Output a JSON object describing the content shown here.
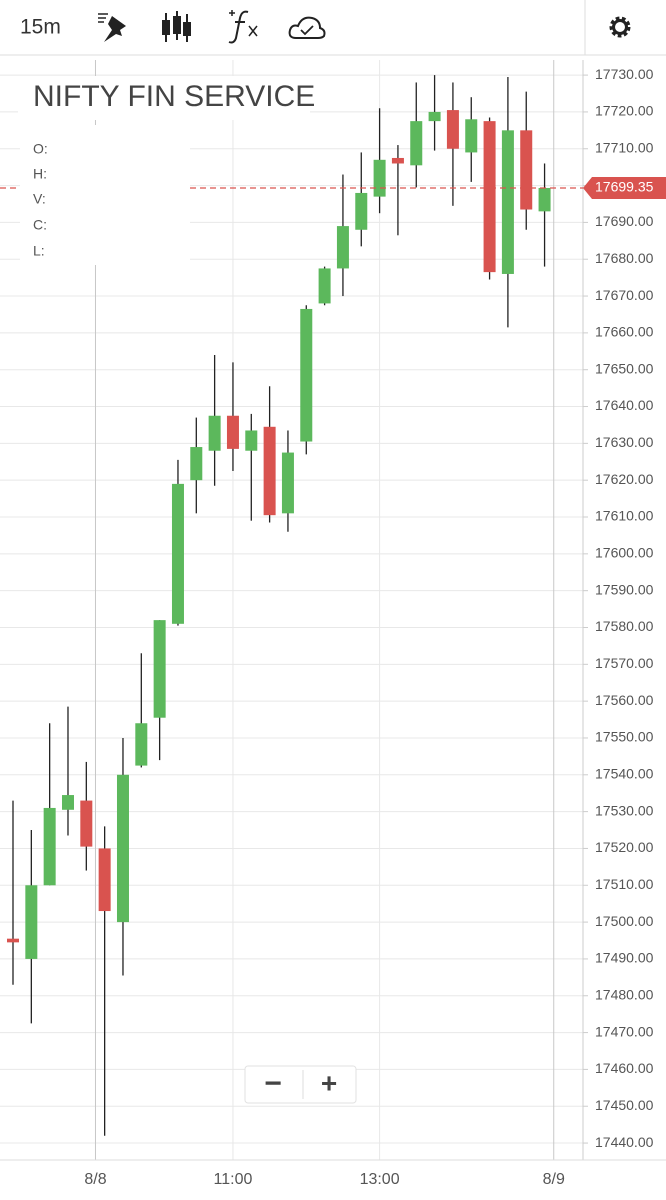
{
  "toolbar": {
    "interval": "15m"
  },
  "ohlc_labels": [
    "O:",
    "H:",
    "V:",
    "C:",
    "L:"
  ],
  "zoom": {
    "out": "−",
    "in": "+"
  },
  "chart_data": {
    "type": "candlestick",
    "title": "NIFTY FIN SERVICE",
    "categories": [
      null,
      null,
      null,
      null,
      null,
      "8/8",
      null,
      null,
      null,
      null,
      null,
      null,
      "11:00",
      null,
      null,
      null,
      null,
      null,
      null,
      null,
      "13:00",
      null,
      null,
      null,
      null,
      null,
      null,
      null,
      null,
      null,
      "8/9"
    ],
    "open": [
      17495.5,
      17490,
      17510,
      17530.5,
      17533,
      17520,
      17500,
      17542.5,
      17555.5,
      17581,
      17620,
      17628,
      17637.5,
      17628,
      17634.5,
      17611,
      17630.5,
      17668,
      17677.5,
      17688,
      17697,
      17707.5,
      17705.5,
      17717.5,
      17720.5,
      17709,
      17717.5,
      17676,
      17715,
      17693,
      null
    ],
    "high": [
      17533,
      17525,
      17554,
      17558.5,
      17543.5,
      17526,
      17550,
      17573,
      17582,
      17625.5,
      17637,
      17654,
      17652,
      17638,
      17645.5,
      17633.5,
      17667.5,
      17678,
      17703,
      17709,
      17721,
      17711,
      17728,
      17730,
      17728,
      17724,
      17718.5,
      17729.5,
      17725.5,
      17706,
      null
    ],
    "low": [
      17483,
      17472.5,
      17510,
      17523.5,
      17514,
      17442,
      17485.5,
      17542,
      17544,
      17580.5,
      17611,
      17618.5,
      17622.5,
      17609,
      17608.5,
      17606,
      17627,
      17667.5,
      17670,
      17683.5,
      17692.5,
      17686.5,
      17699.5,
      17709.5,
      17694.5,
      17701,
      17674.5,
      17661.5,
      17688,
      17678,
      null
    ],
    "close": [
      17494.5,
      17510,
      17531,
      17534.5,
      17520.5,
      17503,
      17540,
      17554,
      17582,
      17619,
      17629,
      17637.5,
      17628.5,
      17633.5,
      17610.5,
      17627.5,
      17666.5,
      17677.5,
      17689,
      17698,
      17707,
      17706,
      17717.5,
      17720,
      17710,
      17718,
      17676.5,
      17715,
      17693.5,
      17699.35,
      null
    ],
    "up_color": "#5cb85c",
    "down_color": "#d9534f",
    "ylim": [
      17435.4,
      17734.1
    ],
    "yticks": [
      {
        "value": 17440,
        "label": "17440.00"
      },
      {
        "value": 17450,
        "label": "17450.00"
      },
      {
        "value": 17460,
        "label": "17460.00"
      },
      {
        "value": 17470,
        "label": "17470.00"
      },
      {
        "value": 17480,
        "label": "17480.00"
      },
      {
        "value": 17490,
        "label": "17490.00"
      },
      {
        "value": 17500,
        "label": "17500.00"
      },
      {
        "value": 17510,
        "label": "17510.00"
      },
      {
        "value": 17520,
        "label": "17520.00"
      },
      {
        "value": 17530,
        "label": "17530.00"
      },
      {
        "value": 17540,
        "label": "17540.00"
      },
      {
        "value": 17550,
        "label": "17550.00"
      },
      {
        "value": 17560,
        "label": "17560.00"
      },
      {
        "value": 17570,
        "label": "17570.00"
      },
      {
        "value": 17580,
        "label": "17580.00"
      },
      {
        "value": 17590,
        "label": "17590.00"
      },
      {
        "value": 17600,
        "label": "17600.00"
      },
      {
        "value": 17610,
        "label": "17610.00"
      },
      {
        "value": 17620,
        "label": "17620.00"
      },
      {
        "value": 17630,
        "label": "17630.00"
      },
      {
        "value": 17640,
        "label": "17640.00"
      },
      {
        "value": 17650,
        "label": "17650.00"
      },
      {
        "value": 17660,
        "label": "17660.00"
      },
      {
        "value": 17670,
        "label": "17670.00"
      },
      {
        "value": 17680,
        "label": "17680.00"
      },
      {
        "value": 17690,
        "label": "17690.00"
      },
      {
        "value": 17700,
        "label": "17700.00"
      },
      {
        "value": 17710,
        "label": "17710.00"
      },
      {
        "value": 17720,
        "label": "17720.00"
      },
      {
        "value": 17730,
        "label": "17730.00"
      }
    ],
    "grid": true
  }
}
